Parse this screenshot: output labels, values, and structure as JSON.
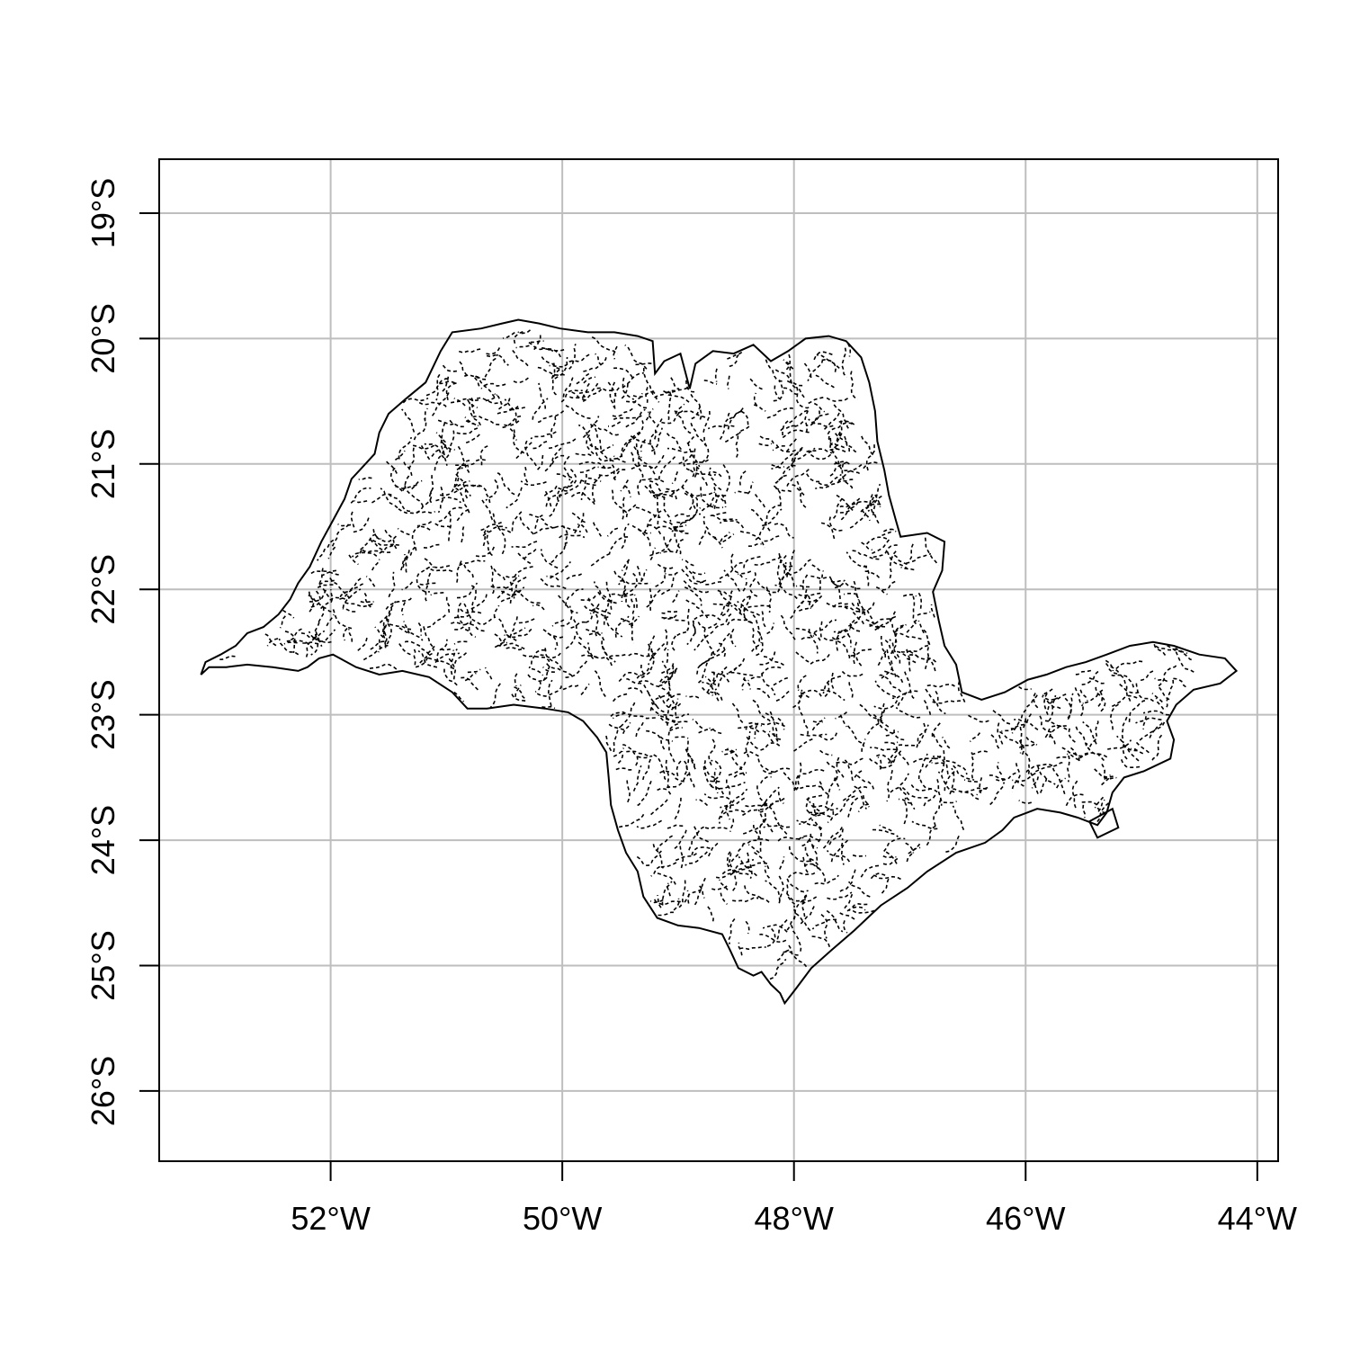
{
  "map": {
    "projection": "longitude/latitude",
    "x_range": [
      -53.48,
      -43.82
    ],
    "y_range": [
      -26.56,
      -18.57
    ],
    "grid": true,
    "grid_color": "#bebebe",
    "outline_color": "#000000",
    "x_ticks": [
      {
        "value": -52,
        "label": "52°W"
      },
      {
        "value": -50,
        "label": "50°W"
      },
      {
        "value": -48,
        "label": "48°W"
      },
      {
        "value": -46,
        "label": "46°W"
      },
      {
        "value": -44,
        "label": "44°W"
      }
    ],
    "y_ticks": [
      {
        "value": -19,
        "label": "19°S"
      },
      {
        "value": -20,
        "label": "20°S"
      },
      {
        "value": -21,
        "label": "21°S"
      },
      {
        "value": -22,
        "label": "22°S"
      },
      {
        "value": -23,
        "label": "23°S"
      },
      {
        "value": -24,
        "label": "24°S"
      },
      {
        "value": -25,
        "label": "25°S"
      },
      {
        "value": -26,
        "label": "26°S"
      }
    ],
    "state_outline": [
      [
        -53.12,
        -22.68
      ],
      [
        -53.08,
        -22.58
      ],
      [
        -52.95,
        -22.52
      ],
      [
        -52.82,
        -22.45
      ],
      [
        -52.72,
        -22.35
      ],
      [
        -52.58,
        -22.3
      ],
      [
        -52.45,
        -22.2
      ],
      [
        -52.35,
        -22.08
      ],
      [
        -52.28,
        -21.95
      ],
      [
        -52.18,
        -21.82
      ],
      [
        -52.08,
        -21.62
      ],
      [
        -51.98,
        -21.45
      ],
      [
        -51.88,
        -21.28
      ],
      [
        -51.82,
        -21.12
      ],
      [
        -51.72,
        -21.02
      ],
      [
        -51.62,
        -20.92
      ],
      [
        -51.58,
        -20.75
      ],
      [
        -51.5,
        -20.6
      ],
      [
        -51.35,
        -20.48
      ],
      [
        -51.18,
        -20.35
      ],
      [
        -51.05,
        -20.1
      ],
      [
        -50.95,
        -19.95
      ],
      [
        -50.7,
        -19.92
      ],
      [
        -50.52,
        -19.88
      ],
      [
        -50.38,
        -19.85
      ],
      [
        -50.2,
        -19.88
      ],
      [
        -50.02,
        -19.92
      ],
      [
        -49.78,
        -19.95
      ],
      [
        -49.55,
        -19.95
      ],
      [
        -49.35,
        -19.98
      ],
      [
        -49.22,
        -20.02
      ],
      [
        -49.2,
        -20.28
      ],
      [
        -49.12,
        -20.18
      ],
      [
        -48.98,
        -20.12
      ],
      [
        -48.9,
        -20.4
      ],
      [
        -48.85,
        -20.2
      ],
      [
        -48.7,
        -20.1
      ],
      [
        -48.52,
        -20.12
      ],
      [
        -48.35,
        -20.05
      ],
      [
        -48.2,
        -20.18
      ],
      [
        -48.05,
        -20.1
      ],
      [
        -47.9,
        -20.0
      ],
      [
        -47.7,
        -19.98
      ],
      [
        -47.55,
        -20.02
      ],
      [
        -47.42,
        -20.15
      ],
      [
        -47.35,
        -20.35
      ],
      [
        -47.3,
        -20.58
      ],
      [
        -47.28,
        -20.82
      ],
      [
        -47.22,
        -21.05
      ],
      [
        -47.18,
        -21.25
      ],
      [
        -47.12,
        -21.45
      ],
      [
        -47.08,
        -21.58
      ],
      [
        -46.85,
        -21.55
      ],
      [
        -46.7,
        -21.62
      ],
      [
        -46.72,
        -21.85
      ],
      [
        -46.8,
        -22.02
      ],
      [
        -46.75,
        -22.25
      ],
      [
        -46.7,
        -22.45
      ],
      [
        -46.6,
        -22.6
      ],
      [
        -46.55,
        -22.82
      ],
      [
        -46.38,
        -22.88
      ],
      [
        -46.18,
        -22.82
      ],
      [
        -45.98,
        -22.72
      ],
      [
        -45.82,
        -22.68
      ],
      [
        -45.65,
        -22.62
      ],
      [
        -45.48,
        -22.58
      ],
      [
        -45.3,
        -22.52
      ],
      [
        -45.1,
        -22.45
      ],
      [
        -44.9,
        -22.42
      ],
      [
        -44.72,
        -22.45
      ],
      [
        -44.5,
        -22.52
      ],
      [
        -44.28,
        -22.55
      ],
      [
        -44.18,
        -22.65
      ],
      [
        -44.32,
        -22.75
      ],
      [
        -44.55,
        -22.8
      ],
      [
        -44.7,
        -22.92
      ],
      [
        -44.78,
        -23.05
      ],
      [
        -44.72,
        -23.2
      ],
      [
        -44.75,
        -23.35
      ],
      [
        -44.98,
        -23.45
      ],
      [
        -45.15,
        -23.5
      ],
      [
        -45.25,
        -23.62
      ],
      [
        -45.3,
        -23.78
      ],
      [
        -45.38,
        -23.88
      ],
      [
        -45.55,
        -23.82
      ],
      [
        -45.7,
        -23.78
      ],
      [
        -45.9,
        -23.75
      ],
      [
        -46.1,
        -23.82
      ],
      [
        -46.2,
        -23.92
      ],
      [
        -46.35,
        -24.02
      ],
      [
        -46.6,
        -24.1
      ],
      [
        -46.85,
        -24.25
      ],
      [
        -47.02,
        -24.38
      ],
      [
        -47.25,
        -24.52
      ],
      [
        -47.48,
        -24.72
      ],
      [
        -47.68,
        -24.88
      ],
      [
        -47.85,
        -25.02
      ],
      [
        -47.98,
        -25.18
      ],
      [
        -48.08,
        -25.3
      ],
      [
        -48.12,
        -25.22
      ],
      [
        -48.2,
        -25.15
      ],
      [
        -48.28,
        -25.05
      ],
      [
        -48.35,
        -25.08
      ],
      [
        -48.48,
        -25.02
      ],
      [
        -48.55,
        -24.88
      ],
      [
        -48.62,
        -24.75
      ],
      [
        -48.82,
        -24.7
      ],
      [
        -49.0,
        -24.68
      ],
      [
        -49.18,
        -24.62
      ],
      [
        -49.3,
        -24.45
      ],
      [
        -49.35,
        -24.25
      ],
      [
        -49.45,
        -24.1
      ],
      [
        -49.52,
        -23.92
      ],
      [
        -49.58,
        -23.72
      ],
      [
        -49.6,
        -23.5
      ],
      [
        -49.62,
        -23.3
      ],
      [
        -49.7,
        -23.18
      ],
      [
        -49.82,
        -23.05
      ],
      [
        -49.95,
        -22.98
      ],
      [
        -50.15,
        -22.95
      ],
      [
        -50.42,
        -22.92
      ],
      [
        -50.65,
        -22.95
      ],
      [
        -50.82,
        -22.95
      ],
      [
        -50.95,
        -22.82
      ],
      [
        -51.15,
        -22.7
      ],
      [
        -51.38,
        -22.65
      ],
      [
        -51.58,
        -22.68
      ],
      [
        -51.78,
        -22.62
      ],
      [
        -51.98,
        -22.52
      ],
      [
        -52.1,
        -22.55
      ],
      [
        -52.2,
        -22.62
      ],
      [
        -52.28,
        -22.65
      ],
      [
        -52.5,
        -22.62
      ],
      [
        -52.72,
        -22.6
      ],
      [
        -52.9,
        -22.62
      ],
      [
        -53.05,
        -22.62
      ],
      [
        -53.12,
        -22.68
      ]
    ],
    "coast_islands": [
      [
        [
          -45.45,
          -23.85
        ],
        [
          -45.25,
          -23.75
        ],
        [
          -45.2,
          -23.9
        ],
        [
          -45.38,
          -23.98
        ],
        [
          -45.45,
          -23.85
        ]
      ]
    ]
  }
}
